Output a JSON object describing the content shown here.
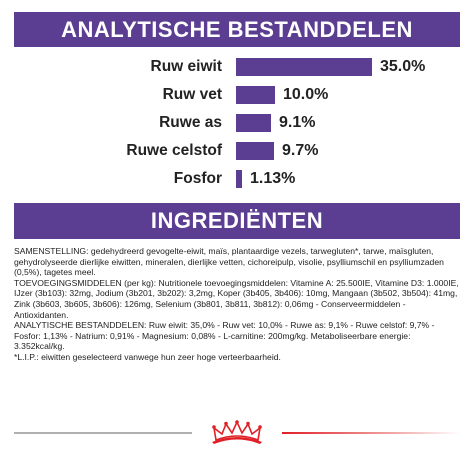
{
  "analysis": {
    "title": "ANALYTISCHE BESTANDDELEN",
    "rows": [
      {
        "label": "Ruw eiwit",
        "value": 35.0,
        "value_text": "35.0%"
      },
      {
        "label": "Ruw vet",
        "value": 10.0,
        "value_text": "10.0%"
      },
      {
        "label": "Ruwe as",
        "value": 9.1,
        "value_text": "9.1%"
      },
      {
        "label": "Ruwe celstof",
        "value": 9.7,
        "value_text": "9.7%"
      },
      {
        "label": "Fosfor",
        "value": 1.13,
        "value_text": "1.13%"
      }
    ],
    "bar_color": "#5b3e92"
  },
  "ingredients": {
    "title": "INGREDIËNTEN",
    "paragraphs": [
      "SAMENSTELLING: gedehydreerd gevogelte-eiwit, maïs, plantaardige vezels, tarwegluten*, tarwe, maïsgluten, gehydrolyseerde dierlijke eiwitten, mineralen, dierlijke vetten, cichoreipulp, visolie, psylliumschil en psylliumzaden (0,5%), tagetes meel.",
      "TOEVOEGINGSMIDDELEN (per kg): Nutritionele toevoegingsmiddelen: Vitamine A: 25.500IE, Vitamine D3: 1.000IE, IJzer (3b103): 32mg, Jodium (3b201, 3b202): 3,2mg, Koper (3b405, 3b406): 10mg, Mangaan (3b502, 3b504): 41mg, Zink (3b603, 3b605, 3b606): 126mg, Selenium (3b801, 3b811, 3b812): 0,06mg - Conserveermiddelen - Antioxidanten.",
      "ANALYTISCHE BESTANDDELEN: Ruw eiwit: 35,0% - Ruw vet: 10,0% - Ruwe as: 9,1% - Ruwe celstof: 9,7% - Fosfor: 1,13% - Natrium: 0,91% - Magnesium: 0,08% - L-carnitine: 200mg/kg. Metaboliseerbare energie: 3.352kcal/kg.",
      "*L.I.P.: eiwitten geselecteerd vanwege hun zeer hoge verteerbaarheid."
    ]
  },
  "brand": {
    "logo": "royal-canin-crown-logo",
    "accent": "#e01f26"
  }
}
